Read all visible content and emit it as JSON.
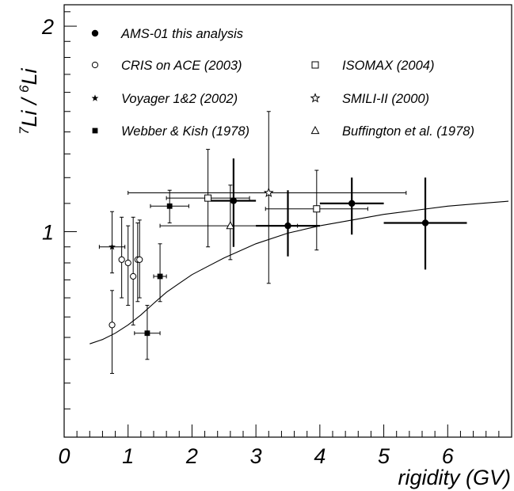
{
  "chart_data": {
    "type": "scatter",
    "xlabel": "rigidity (GV)",
    "ylabel": {
      "pre1": "7",
      "mid1": "Li / ",
      "pre2": "6",
      "mid2": "Li"
    },
    "xlim": [
      0,
      7
    ],
    "ylim": [
      0.5,
      2.15
    ],
    "y_scale": "log",
    "x_ticks": [
      "0",
      "1",
      "2",
      "3",
      "4",
      "5",
      "6"
    ],
    "y_ticks": [
      {
        "value": 1,
        "label": "1"
      },
      {
        "value": 2,
        "label": "2"
      }
    ],
    "grid": false,
    "legend_position": "top-left",
    "series": [
      {
        "name": "AMS-01 this analysis",
        "marker": "filled-circle",
        "points": [
          {
            "x": 2.65,
            "y": 1.11,
            "xlo": 2.3,
            "xhi": 3.0,
            "ylo": 0.95,
            "yhi": 1.28
          },
          {
            "x": 3.5,
            "y": 1.02,
            "xlo": 3.0,
            "xhi": 4.0,
            "ylo": 0.92,
            "yhi": 1.15
          },
          {
            "x": 4.5,
            "y": 1.1,
            "xlo": 4.0,
            "xhi": 5.0,
            "ylo": 0.99,
            "yhi": 1.2
          },
          {
            "x": 5.65,
            "y": 1.03,
            "xlo": 5.0,
            "xhi": 6.3,
            "ylo": 0.88,
            "yhi": 1.2
          }
        ]
      },
      {
        "name": "CRIS on ACE (2003)",
        "marker": "open-circle",
        "points": [
          {
            "x": 0.75,
            "y": 0.73,
            "ylo": 0.62,
            "yhi": 0.82
          },
          {
            "x": 0.9,
            "y": 0.91,
            "ylo": 0.8,
            "yhi": 1.05
          },
          {
            "x": 1.0,
            "y": 0.9,
            "ylo": 0.78,
            "yhi": 1.02
          },
          {
            "x": 1.08,
            "y": 0.86,
            "ylo": 0.73,
            "yhi": 1.05
          },
          {
            "x": 1.15,
            "y": 0.91,
            "ylo": 0.79,
            "yhi": 1.03
          },
          {
            "x": 1.18,
            "y": 0.91,
            "ylo": 0.8,
            "yhi": 1.04
          }
        ]
      },
      {
        "name": "Voyager 1&2 (2002)",
        "marker": "filled-star",
        "points": [
          {
            "x": 0.75,
            "y": 0.95,
            "xlo": 0.55,
            "xhi": 0.95,
            "ylo": 0.87,
            "yhi": 1.07
          }
        ]
      },
      {
        "name": "Webber & Kish (1978)",
        "marker": "filled-square",
        "points": [
          {
            "x": 1.3,
            "y": 0.71,
            "xlo": 1.1,
            "xhi": 1.5,
            "ylo": 0.65,
            "yhi": 0.78
          },
          {
            "x": 1.5,
            "y": 0.86,
            "xlo": 1.4,
            "xhi": 1.6,
            "ylo": 0.79,
            "yhi": 0.96
          },
          {
            "x": 1.65,
            "y": 1.09,
            "xlo": 1.35,
            "xhi": 1.95,
            "ylo": 1.03,
            "yhi": 1.15
          }
        ]
      },
      {
        "name": "ISOMAX (2004)",
        "marker": "open-square",
        "points": [
          {
            "x": 2.25,
            "y": 1.12,
            "xlo": 1.6,
            "xhi": 2.9,
            "ylo": 0.95,
            "yhi": 1.32
          },
          {
            "x": 3.95,
            "y": 1.08,
            "xlo": 3.15,
            "xhi": 4.75,
            "ylo": 0.94,
            "yhi": 1.23
          }
        ]
      },
      {
        "name": "SMILI-II (2000)",
        "marker": "open-star",
        "points": [
          {
            "x": 3.2,
            "y": 1.14,
            "xlo": 1.0,
            "xhi": 5.35,
            "ylo": 0.84,
            "yhi": 1.5
          }
        ]
      },
      {
        "name": "Buffington et al. (1978)",
        "marker": "open-triangle",
        "points": [
          {
            "x": 2.6,
            "y": 1.02,
            "xlo": 1.5,
            "xhi": 3.65,
            "ylo": 0.91,
            "yhi": 1.17
          }
        ]
      },
      {
        "name": "",
        "marker": "line",
        "points": [
          {
            "x": 0.4,
            "y": 0.685
          },
          {
            "x": 0.6,
            "y": 0.695
          },
          {
            "x": 0.8,
            "y": 0.71
          },
          {
            "x": 1.0,
            "y": 0.73
          },
          {
            "x": 1.2,
            "y": 0.755
          },
          {
            "x": 1.4,
            "y": 0.785
          },
          {
            "x": 1.6,
            "y": 0.815
          },
          {
            "x": 1.8,
            "y": 0.84
          },
          {
            "x": 2.0,
            "y": 0.865
          },
          {
            "x": 2.2,
            "y": 0.885
          },
          {
            "x": 2.5,
            "y": 0.915
          },
          {
            "x": 3.0,
            "y": 0.96
          },
          {
            "x": 3.5,
            "y": 0.995
          },
          {
            "x": 4.0,
            "y": 1.02
          },
          {
            "x": 4.5,
            "y": 1.04
          },
          {
            "x": 5.0,
            "y": 1.06
          },
          {
            "x": 5.5,
            "y": 1.075
          },
          {
            "x": 6.0,
            "y": 1.09
          },
          {
            "x": 6.5,
            "y": 1.1
          },
          {
            "x": 6.95,
            "y": 1.108
          }
        ]
      }
    ],
    "legend": [
      {
        "label": "AMS-01 this analysis",
        "marker": "filled-circle",
        "column": 0,
        "row": 0
      },
      {
        "label": "CRIS on ACE (2003)",
        "marker": "open-circle",
        "column": 0,
        "row": 1
      },
      {
        "label": "ISOMAX (2004)",
        "marker": "open-square",
        "column": 1,
        "row": 1
      },
      {
        "label": "Voyager 1&2 (2002)",
        "marker": "filled-star",
        "column": 0,
        "row": 2
      },
      {
        "label": "SMILI-II (2000)",
        "marker": "open-star",
        "column": 1,
        "row": 2
      },
      {
        "label": "Webber & Kish (1978)",
        "marker": "filled-square",
        "column": 0,
        "row": 3
      },
      {
        "label": "Buffington et al. (1978)",
        "marker": "open-triangle",
        "column": 1,
        "row": 3
      }
    ]
  }
}
